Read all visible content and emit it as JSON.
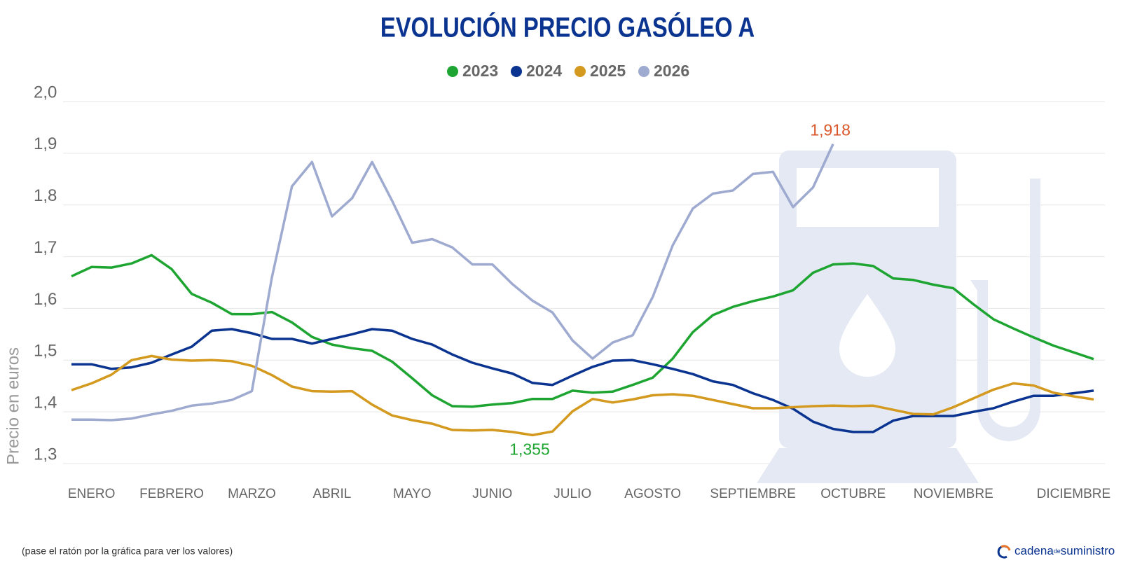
{
  "chart_data": {
    "type": "line",
    "title": "EVOLUCIÓN PRECIO GASÓLEO A",
    "y_label": "Precio en euros",
    "note": "(pase el ratón por la gráfica para ver los valores)",
    "brand": [
      "cadena",
      "de",
      "suministro"
    ],
    "categories": [
      null,
      "ENERO",
      null,
      null,
      null,
      "FEBRERO",
      null,
      null,
      null,
      "MARZO",
      null,
      null,
      null,
      "ABRIL",
      null,
      null,
      null,
      "MAYO",
      null,
      null,
      null,
      "JUNIO",
      null,
      null,
      null,
      "JULIO",
      null,
      null,
      null,
      "AGOSTO",
      null,
      null,
      null,
      null,
      "SEPTIEMBRE",
      null,
      null,
      null,
      null,
      "OCTUBRE",
      null,
      null,
      null,
      null,
      "NOVIEMBRE",
      null,
      null,
      null,
      null,
      null,
      "DICIEMBRE",
      null
    ],
    "ylim": [
      1.3,
      2.0
    ],
    "yticks": [
      {
        "value": 1.3,
        "label": "1,3"
      },
      {
        "value": 1.4,
        "label": "1,4"
      },
      {
        "value": 1.5,
        "label": "1,5"
      },
      {
        "value": 1.6,
        "label": "1,6"
      },
      {
        "value": 1.7,
        "label": "1,7"
      },
      {
        "value": 1.8,
        "label": "1,8"
      },
      {
        "value": 1.9,
        "label": "1,9"
      },
      {
        "value": 2.0,
        "label": "2,0"
      }
    ],
    "grid": true,
    "legend": "top",
    "series": [
      {
        "name": "2023",
        "color": "#1ea531",
        "values": [
          1.662,
          1.68,
          1.679,
          1.687,
          1.703,
          1.676,
          1.628,
          1.611,
          1.589,
          1.589,
          1.593,
          1.573,
          1.545,
          1.53,
          1.523,
          1.518,
          1.497,
          1.465,
          1.432,
          1.411,
          1.41,
          1.414,
          1.417,
          1.425,
          1.425,
          1.441,
          1.437,
          1.439,
          1.452,
          1.466,
          1.503,
          1.554,
          1.587,
          1.603,
          1.614,
          1.623,
          1.635,
          1.669,
          1.685,
          1.687,
          1.682,
          1.658,
          1.655,
          1.646,
          1.639,
          1.608,
          1.579,
          1.561,
          1.544,
          1.528,
          1.515,
          1.502
        ]
      },
      {
        "name": "2024",
        "color": "#0a3490",
        "values": [
          1.492,
          1.492,
          1.483,
          1.486,
          1.495,
          1.511,
          1.526,
          1.557,
          1.56,
          1.552,
          1.541,
          1.541,
          1.532,
          1.541,
          1.55,
          1.56,
          1.557,
          1.541,
          1.53,
          1.511,
          1.495,
          1.484,
          1.474,
          1.456,
          1.452,
          1.47,
          1.487,
          1.499,
          1.5,
          1.492,
          1.483,
          1.473,
          1.459,
          1.452,
          1.436,
          1.423,
          1.406,
          1.381,
          1.367,
          1.361,
          1.361,
          1.383,
          1.392,
          1.392,
          1.392,
          1.4,
          1.407,
          1.42,
          1.431,
          1.431,
          1.436,
          1.441
        ]
      },
      {
        "name": "2025",
        "color": "#d49a1f",
        "values": [
          1.442,
          1.455,
          1.472,
          1.5,
          1.508,
          1.501,
          1.499,
          1.5,
          1.498,
          1.489,
          1.471,
          1.449,
          1.44,
          1.439,
          1.44,
          1.414,
          1.393,
          1.384,
          1.377,
          1.365,
          1.364,
          1.365,
          1.361,
          1.355,
          1.362,
          1.401,
          1.425,
          1.418,
          1.424,
          1.432,
          1.434,
          1.431,
          1.423,
          1.415,
          1.407,
          1.407,
          1.409,
          1.411,
          1.412,
          1.411,
          1.412,
          1.404,
          1.396,
          1.395,
          1.409,
          1.426,
          1.443,
          1.455,
          1.451,
          1.437,
          1.43,
          1.424
        ],
        "value_labels": [
          null,
          null,
          null,
          null,
          null,
          null,
          null,
          null,
          null,
          null,
          null,
          null,
          null,
          null,
          null,
          null,
          null,
          null,
          null,
          null,
          null,
          null,
          null,
          "1,355",
          null,
          null,
          null,
          null,
          null,
          null,
          null,
          null,
          null,
          null,
          null,
          null,
          null,
          null,
          null,
          null,
          null,
          null,
          null,
          null,
          null,
          null,
          null,
          null,
          null,
          null,
          null,
          null
        ]
      },
      {
        "name": "2026",
        "color": "#9eaacf",
        "values": [
          1.385,
          1.385,
          1.384,
          1.387,
          1.395,
          1.402,
          1.412,
          1.416,
          1.423,
          1.44,
          1.66,
          1.836,
          1.883,
          1.778,
          1.813,
          1.883,
          1.808,
          1.727,
          1.734,
          1.718,
          1.685,
          1.685,
          1.647,
          1.615,
          1.592,
          1.538,
          1.503,
          1.534,
          1.548,
          1.622,
          1.722,
          1.793,
          1.822,
          1.828,
          1.86,
          1.864,
          1.796,
          1.834,
          1.918,
          null,
          null,
          null,
          null,
          null,
          null,
          null,
          null,
          null,
          null,
          null,
          null,
          null
        ],
        "value_labels": [
          null,
          null,
          null,
          null,
          null,
          null,
          null,
          null,
          null,
          null,
          null,
          null,
          null,
          null,
          null,
          null,
          null,
          null,
          null,
          null,
          null,
          null,
          null,
          null,
          null,
          null,
          null,
          null,
          null,
          null,
          null,
          null,
          null,
          null,
          null,
          null,
          null,
          null,
          "1,918",
          null,
          null,
          null,
          null,
          null,
          null,
          null,
          null,
          null,
          null,
          null,
          null,
          null
        ]
      }
    ]
  }
}
